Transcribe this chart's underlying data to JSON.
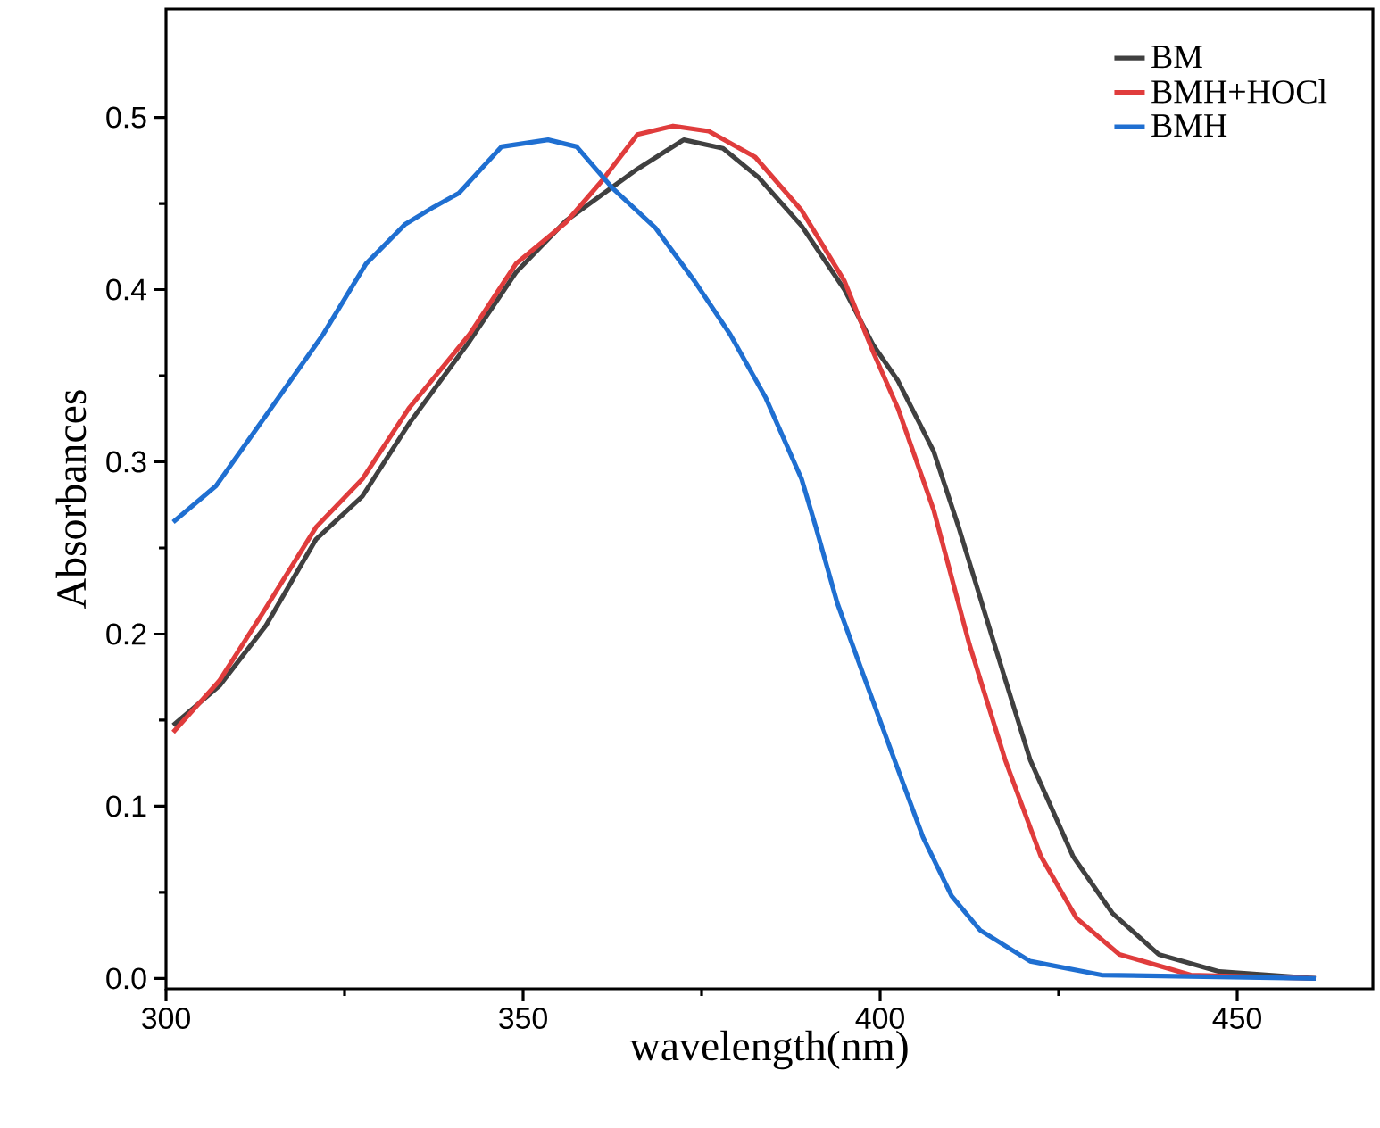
{
  "chart_data": {
    "type": "line",
    "xlabel": "wavelength(nm)",
    "ylabel": "Absorbances",
    "xlim": [
      300,
      469
    ],
    "ylim": [
      -0.006,
      0.563
    ],
    "xticks": [
      300,
      350,
      400,
      450
    ],
    "yticks": [
      {
        "value": 0,
        "label": "0.0"
      },
      {
        "value": 0.1,
        "label": "0.1"
      },
      {
        "value": 0.2,
        "label": "0.2"
      },
      {
        "value": 0.3,
        "label": "0.3"
      },
      {
        "value": 0.4,
        "label": "0.4"
      },
      {
        "value": 0.5,
        "label": "0.5"
      }
    ],
    "legend": "top right",
    "grid": false,
    "marker": "none",
    "line_style": "solid",
    "series": [
      {
        "name": "BM",
        "color": "#404040",
        "x": [
          301,
          307.5,
          314,
          321,
          327.5,
          334,
          342.5,
          349,
          356,
          361,
          366,
          372.5,
          378,
          383,
          389,
          395,
          399,
          402.5,
          407.5,
          411,
          416,
          421,
          427,
          432.5,
          439,
          447.5,
          461
        ],
        "values": [
          0.147,
          0.17,
          0.205,
          0.255,
          0.28,
          0.322,
          0.37,
          0.41,
          0.44,
          0.455,
          0.47,
          0.487,
          0.482,
          0.465,
          0.437,
          0.4,
          0.368,
          0.347,
          0.306,
          0.262,
          0.194,
          0.127,
          0.071,
          0.038,
          0.014,
          0.004,
          0
        ]
      },
      {
        "name": "BMH+HOCl",
        "color": "#e03c3c",
        "x": [
          301,
          307.5,
          313.5,
          321,
          327.5,
          334,
          342.5,
          349,
          356,
          361,
          366,
          371,
          376,
          382.5,
          389,
          395,
          399,
          402.5,
          407.5,
          412.5,
          417.5,
          422.5,
          427.5,
          433.5,
          443.5,
          461
        ],
        "values": [
          0.143,
          0.173,
          0.212,
          0.262,
          0.29,
          0.331,
          0.374,
          0.415,
          0.439,
          0.463,
          0.49,
          0.495,
          0.492,
          0.477,
          0.446,
          0.405,
          0.364,
          0.331,
          0.272,
          0.194,
          0.127,
          0.071,
          0.035,
          0.014,
          0.002,
          0
        ]
      },
      {
        "name": "BMH",
        "color": "#1f6fd1",
        "x": [
          301,
          307,
          314,
          322,
          328,
          333.5,
          337.5,
          341,
          347,
          353.5,
          357.5,
          362.5,
          368.5,
          374,
          379,
          384,
          389,
          391,
          394,
          397.5,
          402,
          406,
          410,
          414,
          421,
          431,
          461
        ],
        "values": [
          0.265,
          0.286,
          0.327,
          0.374,
          0.415,
          0.438,
          0.448,
          0.456,
          0.483,
          0.487,
          0.483,
          0.459,
          0.436,
          0.405,
          0.374,
          0.337,
          0.29,
          0.262,
          0.218,
          0.178,
          0.127,
          0.082,
          0.048,
          0.028,
          0.01,
          0.002,
          0
        ]
      }
    ]
  }
}
